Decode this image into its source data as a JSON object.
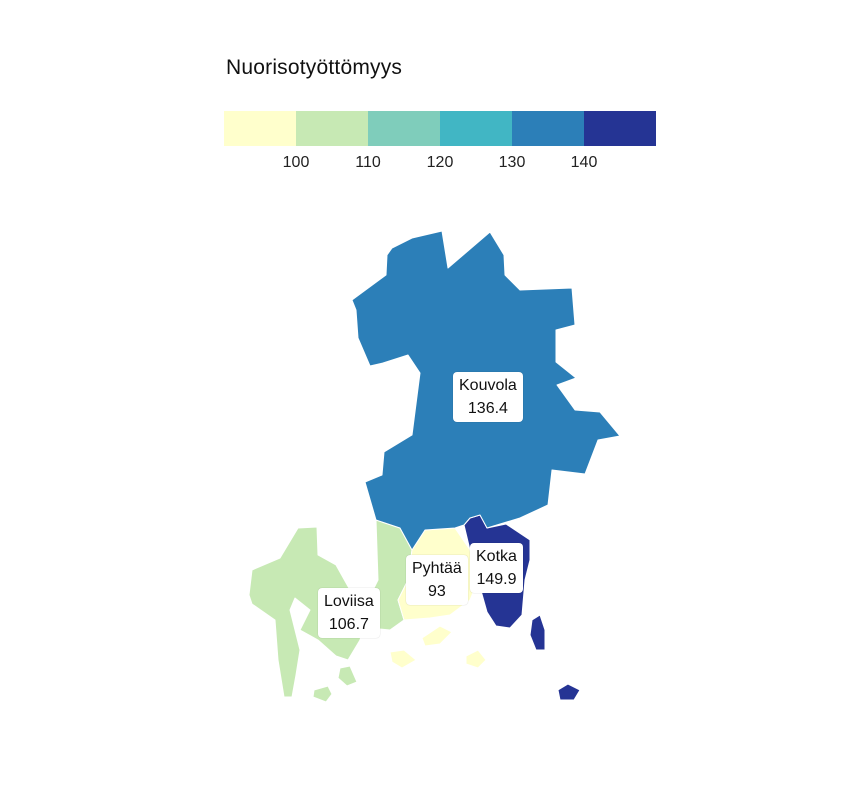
{
  "legend": {
    "title": "Nuorisotyöttömyys",
    "colors": [
      "#ffffcc",
      "#c7e9b4",
      "#7fcdbb",
      "#41b6c4",
      "#2c7fb8",
      "#253494"
    ],
    "ticks": [
      "100",
      "110",
      "120",
      "130",
      "140"
    ]
  },
  "regions": [
    {
      "name": "Kouvola",
      "value": "136.4",
      "color": "#2c7fb8"
    },
    {
      "name": "Kotka",
      "value": "149.9",
      "color": "#253494"
    },
    {
      "name": "Pyhtää",
      "value": "93",
      "color": "#ffffcc"
    },
    {
      "name": "Loviisa",
      "value": "106.7",
      "color": "#c7e9b4"
    }
  ]
}
